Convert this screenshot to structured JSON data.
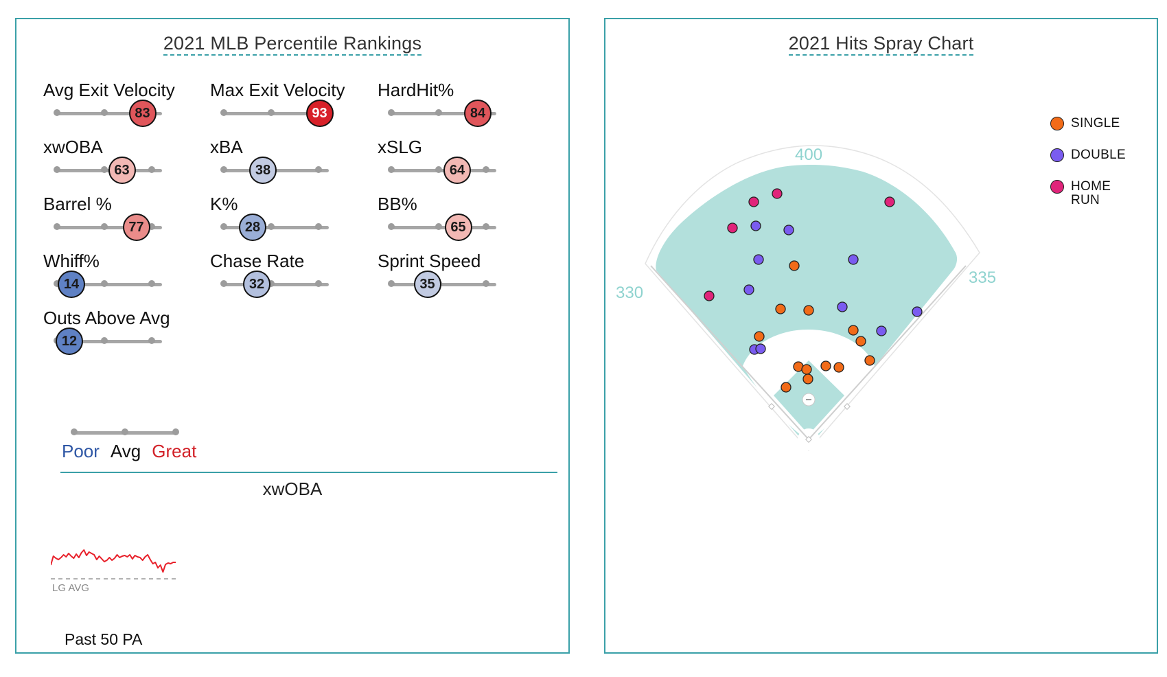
{
  "percentile_panel": {
    "title": "2021 MLB Percentile Rankings",
    "metrics": [
      {
        "label": "Avg Exit Velocity",
        "percentile": 83,
        "color": "#e0565b",
        "text_color": "#1a1a1a"
      },
      {
        "label": "Max Exit Velocity",
        "percentile": 93,
        "color": "#d82129",
        "text_color": "#ffffff"
      },
      {
        "label": "HardHit%",
        "percentile": 84,
        "color": "#e0565b",
        "text_color": "#1a1a1a"
      },
      {
        "label": "xwOBA",
        "percentile": 63,
        "color": "#f2b8b4",
        "text_color": "#1a1a1a"
      },
      {
        "label": "xBA",
        "percentile": 38,
        "color": "#c2cbe2",
        "text_color": "#1a1a1a"
      },
      {
        "label": "xSLG",
        "percentile": 64,
        "color": "#f2b8b4",
        "text_color": "#1a1a1a"
      },
      {
        "label": "Barrel %",
        "percentile": 77,
        "color": "#ea8c8a",
        "text_color": "#1a1a1a"
      },
      {
        "label": "K%",
        "percentile": 28,
        "color": "#9aaed6",
        "text_color": "#1a1a1a"
      },
      {
        "label": "BB%",
        "percentile": 65,
        "color": "#f2b8b4",
        "text_color": "#1a1a1a"
      },
      {
        "label": "Whiff%",
        "percentile": 14,
        "color": "#5f81c4",
        "text_color": "#1a1a1a"
      },
      {
        "label": "Chase Rate",
        "percentile": 32,
        "color": "#b3c0de",
        "text_color": "#1a1a1a"
      },
      {
        "label": "Sprint Speed",
        "percentile": 35,
        "color": "#c2cbe2",
        "text_color": "#1a1a1a"
      },
      {
        "label": "Outs Above Avg",
        "percentile": 12,
        "color": "#5f81c4",
        "text_color": "#1a1a1a"
      }
    ],
    "legend": {
      "poor": "Poor",
      "avg": "Avg",
      "great": "Great",
      "poor_color": "#2f57a5",
      "avg_color": "#111111",
      "great_color": "#d22027"
    },
    "xwoba_title": "xwOBA",
    "sparkline": {
      "baseline_label": "LG AVG",
      "footer": "Past 50 PA",
      "line_color": "#e8202a",
      "baseline_color": "#999999"
    }
  },
  "spray_panel": {
    "title": "2021 Hits Spray Chart",
    "fence_labels": {
      "left": "330",
      "center": "400",
      "right": "335"
    },
    "label_color": "#8fd3cf",
    "legend": [
      {
        "key": "single",
        "label": "SINGLE",
        "color": "#f26b18"
      },
      {
        "key": "double",
        "label": "DOUBLE",
        "color": "#7a5cf0"
      },
      {
        "key": "home_run",
        "label": "HOME RUN",
        "color": "#e0247a"
      }
    ]
  },
  "chart_data": [
    {
      "type": "bar",
      "title": "2021 MLB Percentile Rankings",
      "categories": [
        "Avg Exit Velocity",
        "Max Exit Velocity",
        "HardHit%",
        "xwOBA",
        "xBA",
        "xSLG",
        "Barrel %",
        "K%",
        "BB%",
        "Whiff%",
        "Chase Rate",
        "Sprint Speed",
        "Outs Above Avg"
      ],
      "values": [
        83,
        93,
        84,
        63,
        38,
        64,
        77,
        28,
        65,
        14,
        32,
        35,
        12
      ],
      "ylim": [
        0,
        100
      ]
    },
    {
      "type": "line",
      "title": "xwOBA",
      "xlabel": "Past 50 PA",
      "ylabel": "",
      "baseline": {
        "label": "LG AVG",
        "value": 0.315
      },
      "x": [
        1,
        2,
        3,
        4,
        5,
        6,
        7,
        8,
        9,
        10,
        11,
        12,
        13,
        14,
        15,
        16,
        17,
        18,
        19,
        20,
        21,
        22,
        23,
        24,
        25,
        26,
        27,
        28,
        29,
        30,
        31,
        32,
        33,
        34,
        35,
        36,
        37,
        38,
        39,
        40,
        41,
        42,
        43,
        44,
        45,
        46,
        47,
        48,
        49,
        50
      ],
      "values": [
        0.335,
        0.348,
        0.345,
        0.343,
        0.346,
        0.35,
        0.347,
        0.352,
        0.348,
        0.345,
        0.351,
        0.346,
        0.353,
        0.357,
        0.349,
        0.354,
        0.352,
        0.35,
        0.343,
        0.348,
        0.344,
        0.34,
        0.342,
        0.346,
        0.342,
        0.345,
        0.35,
        0.346,
        0.348,
        0.349,
        0.347,
        0.35,
        0.344,
        0.349,
        0.347,
        0.346,
        0.342,
        0.347,
        0.35,
        0.343,
        0.337,
        0.339,
        0.331,
        0.335,
        0.325,
        0.336,
        0.338,
        0.337,
        0.339,
        0.339
      ]
    },
    {
      "type": "scatter",
      "title": "2021 Hits Spray Chart",
      "x_unit": "feet (negative = left field)",
      "y_unit": "feet toward center field",
      "series": [
        {
          "name": "SINGLE",
          "points": [
            [
              -21,
              253
            ],
            [
              -41,
              190
            ],
            [
              0,
              188
            ],
            [
              65,
              159
            ],
            [
              -72,
              150
            ],
            [
              76,
              143
            ],
            [
              -15,
              106
            ],
            [
              -3,
              102
            ],
            [
              25,
              107
            ],
            [
              44,
              105
            ],
            [
              -1,
              88
            ],
            [
              -33,
              76
            ],
            [
              89,
              115
            ]
          ]
        },
        {
          "name": "DOUBLE",
          "points": [
            [
              -87,
              218
            ],
            [
              -79,
              131
            ],
            [
              49,
              193
            ],
            [
              -73,
              262
            ],
            [
              106,
              158
            ],
            [
              -70,
              132
            ],
            [
              -29,
              305
            ],
            [
              -77,
              311
            ],
            [
              65,
              262
            ],
            [
              158,
              186
            ]
          ]
        },
        {
          "name": "HOME RUN",
          "points": [
            [
              -80,
              346
            ],
            [
              -111,
              308
            ],
            [
              -46,
              358
            ],
            [
              118,
              346
            ],
            [
              -145,
              209
            ]
          ]
        }
      ]
    }
  ]
}
